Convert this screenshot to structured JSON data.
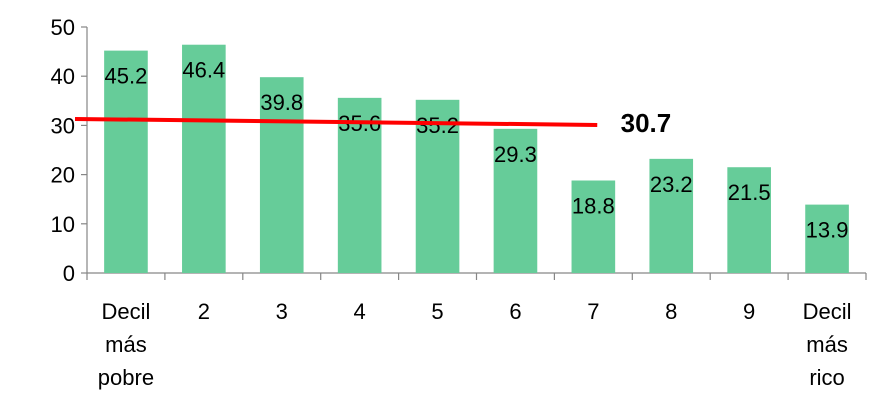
{
  "chart_data": {
    "type": "bar",
    "categories": [
      [
        "Decil",
        "más",
        "pobre"
      ],
      [
        "2"
      ],
      [
        "3"
      ],
      [
        "4"
      ],
      [
        "5"
      ],
      [
        "6"
      ],
      [
        "7"
      ],
      [
        "8"
      ],
      [
        "9"
      ],
      [
        "Decil",
        "más",
        "rico"
      ]
    ],
    "values": [
      45.2,
      46.4,
      39.8,
      35.6,
      35.2,
      29.3,
      18.8,
      23.2,
      21.5,
      13.9
    ],
    "value_labels": [
      "45.2",
      "46.4",
      "39.8",
      "35.6",
      "35.2",
      "29.3",
      "18.8",
      "23.2",
      "21.5",
      "13.9"
    ],
    "ylim": [
      0,
      50
    ],
    "yticks": [
      0,
      10,
      20,
      30,
      40,
      50
    ],
    "grid": false,
    "legend": "none",
    "bar_color": "#66CC99",
    "reference_line": {
      "value": 30.7,
      "label": "30.7",
      "color": "#FF0000"
    }
  }
}
